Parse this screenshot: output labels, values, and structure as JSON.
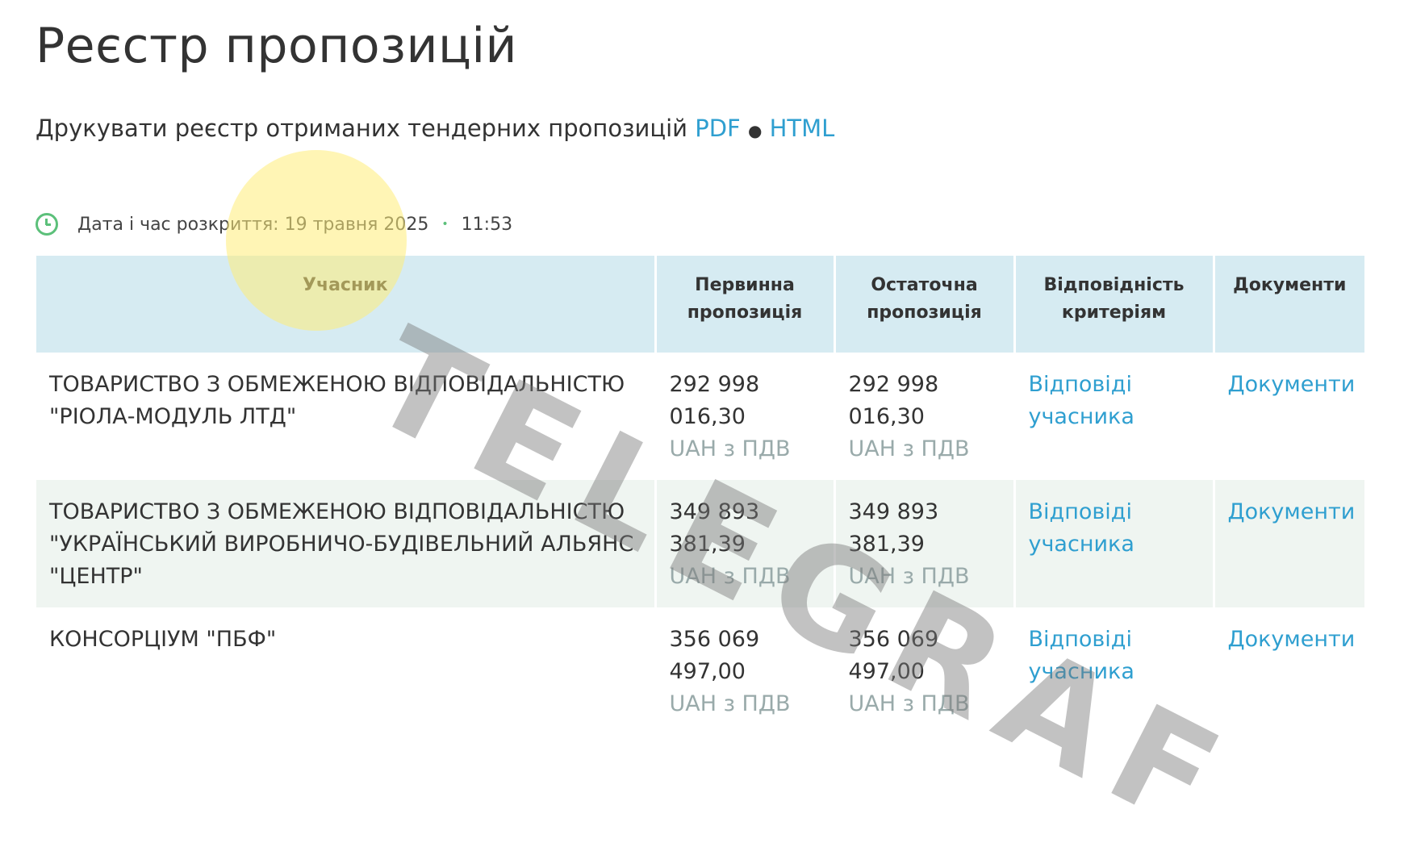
{
  "page": {
    "title": "Реєстр пропозицій",
    "print_label": "Друкувати реєстр отриманих тендерних пропозицій",
    "print_pdf": "PDF",
    "print_sep": "●",
    "print_html": "HTML",
    "opening_label": "Дата і час розкриття: 19 травня 2025",
    "opening_sep": "•",
    "opening_time": "11:53"
  },
  "table": {
    "headers": [
      "Учасник",
      "Первинна пропозиція",
      "Остаточна пропозиція",
      "Відповідність критеріям",
      "Документи"
    ],
    "rows": [
      {
        "participant": "ТОВАРИСТВО З ОБМЕЖЕНОЮ ВІДПОВІДАЛЬНІСТЮ \"РІОЛА-МОДУЛЬ ЛТД\"",
        "initial": "292 998 016,30",
        "final": "292 998 016,30",
        "currency": "UAH з ПДВ",
        "criteria": "Відповіді учасника",
        "docs": "Документи"
      },
      {
        "participant": "ТОВАРИСТВО З ОБМЕЖЕНОЮ ВІДПОВІДАЛЬНІСТЮ \"УКРАЇНСЬКИЙ ВИРОБНИЧО-БУДІВЕЛЬНИЙ АЛЬЯНС \"ЦЕНТР\"",
        "initial": "349 893 381,39",
        "final": "349 893 381,39",
        "currency": "UAH з ПДВ",
        "criteria": "Відповіді учасника",
        "docs": "Документи"
      },
      {
        "participant": "КОНСОРЦІУМ \"ПБФ\"",
        "initial": "356 069 497,00",
        "final": "356 069 497,00",
        "currency": "UAH з ПДВ",
        "criteria": "Відповіді учасника",
        "docs": "Документи"
      }
    ]
  },
  "watermark": {
    "text": "TELEGRAF"
  },
  "colors": {
    "link": "#2f9fd0",
    "header_bg": "#d6ebf2",
    "alt_row_bg": "#eff5f1",
    "clock": "#5cc07a"
  }
}
